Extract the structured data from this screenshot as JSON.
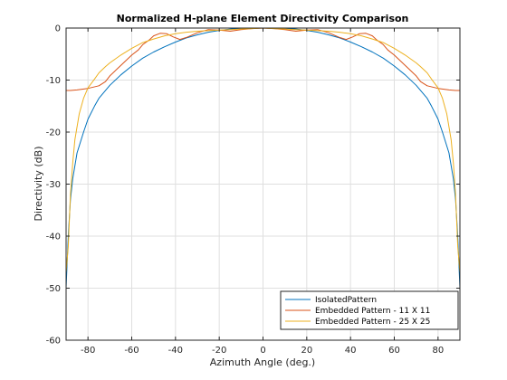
{
  "chart_data": {
    "type": "line",
    "title": "Normalized H-plane Element Directivity Comparison",
    "xlabel": "Azimuth Angle (deg.)",
    "ylabel": "Directivity (dB)",
    "xlim": [
      -90,
      90
    ],
    "ylim": [
      -60,
      0
    ],
    "xticks": [
      -80,
      -60,
      -40,
      -20,
      0,
      20,
      40,
      60,
      80
    ],
    "yticks": [
      -60,
      -50,
      -40,
      -30,
      -20,
      -10,
      0
    ],
    "grid": true,
    "legend_position": "bottom-right",
    "series": [
      {
        "name": "IsolatedPattern",
        "color": "#0072BD",
        "x": [
          -90,
          -89,
          -88,
          -87,
          -85,
          -82,
          -80,
          -77,
          -75,
          -70,
          -65,
          -60,
          -55,
          -50,
          -45,
          -40,
          -35,
          -30,
          -25,
          -20,
          -15,
          -10,
          -5,
          0,
          5,
          10,
          15,
          20,
          25,
          30,
          35,
          40,
          45,
          50,
          55,
          60,
          65,
          70,
          75,
          77,
          80,
          82,
          85,
          87,
          88,
          89,
          90
        ],
        "y": [
          -50,
          -40,
          -33,
          -29,
          -24,
          -20,
          -17.5,
          -15,
          -13.5,
          -11,
          -9,
          -7.3,
          -5.8,
          -4.6,
          -3.6,
          -2.7,
          -1.9,
          -1.3,
          -0.8,
          -0.45,
          -0.2,
          -0.06,
          0,
          0,
          0,
          -0.06,
          -0.2,
          -0.45,
          -0.8,
          -1.3,
          -1.9,
          -2.7,
          -3.6,
          -4.6,
          -5.8,
          -7.3,
          -9,
          -11,
          -13.5,
          -15,
          -17.5,
          -20,
          -24,
          -29,
          -33,
          -40,
          -50
        ]
      },
      {
        "name": "Embedded Pattern - 11 X 11",
        "color": "#D95319",
        "x": [
          -90,
          -88,
          -85,
          -80,
          -75,
          -72,
          -70,
          -65,
          -60,
          -57,
          -55,
          -52,
          -50,
          -47,
          -44,
          -41,
          -38,
          -35,
          -30,
          -25,
          -20,
          -15,
          -10,
          -5,
          0,
          5,
          10,
          15,
          20,
          25,
          30,
          35,
          38,
          41,
          44,
          47,
          50,
          52,
          55,
          57,
          60,
          65,
          70,
          72,
          75,
          80,
          85,
          88,
          90
        ],
        "y": [
          -12,
          -12,
          -11.9,
          -11.6,
          -11.1,
          -10.3,
          -9.2,
          -7.2,
          -5.2,
          -4.2,
          -3.2,
          -2.3,
          -1.5,
          -1,
          -1.1,
          -1.7,
          -2.2,
          -1.8,
          -0.9,
          -0.3,
          -0.4,
          -0.6,
          -0.3,
          -0.1,
          0,
          -0.1,
          -0.3,
          -0.6,
          -0.4,
          -0.3,
          -0.9,
          -1.8,
          -2.2,
          -1.7,
          -1.1,
          -1,
          -1.5,
          -2.3,
          -3.2,
          -4.2,
          -5.2,
          -7.2,
          -9.2,
          -10.3,
          -11.1,
          -11.6,
          -11.9,
          -12,
          -12
        ]
      },
      {
        "name": "Embedded Pattern - 25 X 25",
        "color": "#EDB120",
        "x": [
          -90,
          -89,
          -88,
          -87,
          -86,
          -84,
          -82,
          -80,
          -77,
          -75,
          -72,
          -70,
          -65,
          -60,
          -55,
          -50,
          -45,
          -40,
          -35,
          -30,
          -25,
          -20,
          -15,
          -10,
          -5,
          0,
          5,
          10,
          15,
          20,
          25,
          30,
          35,
          40,
          45,
          50,
          55,
          60,
          65,
          70,
          72,
          75,
          77,
          80,
          82,
          84,
          86,
          87,
          88,
          89,
          90
        ],
        "y": [
          -47,
          -42,
          -32,
          -26,
          -21.5,
          -16.5,
          -13.5,
          -11.5,
          -9.8,
          -8.6,
          -7.4,
          -6.7,
          -5.2,
          -3.9,
          -2.8,
          -2.1,
          -1.5,
          -1.1,
          -0.8,
          -0.6,
          -0.5,
          -0.4,
          -0.3,
          -0.2,
          -0.1,
          0,
          -0.1,
          -0.2,
          -0.3,
          -0.4,
          -0.5,
          -0.6,
          -0.8,
          -1.1,
          -1.5,
          -2.1,
          -2.8,
          -3.9,
          -5.2,
          -6.7,
          -7.4,
          -8.6,
          -9.8,
          -11.5,
          -13.5,
          -16.5,
          -21.5,
          -26,
          -32,
          -42,
          -47
        ]
      }
    ]
  }
}
